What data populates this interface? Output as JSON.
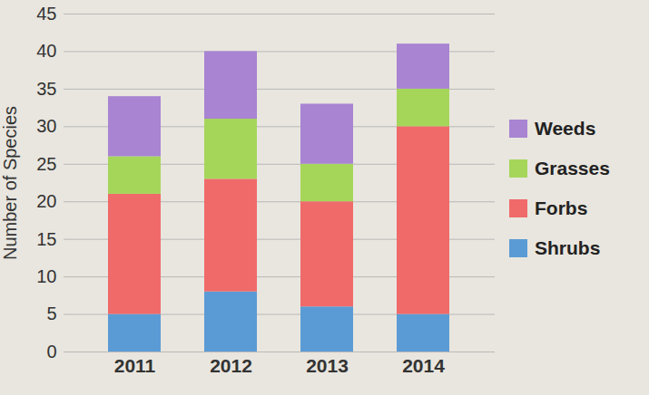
{
  "chart_data": {
    "type": "bar",
    "stacked": true,
    "grid": true,
    "legend": "right",
    "ylabel": "Number of Species",
    "categories": [
      "2011",
      "2012",
      "2013",
      "2014"
    ],
    "ylim": [
      0,
      45
    ],
    "yticks": [
      0,
      5,
      10,
      15,
      20,
      25,
      30,
      35,
      40,
      45
    ],
    "series": [
      {
        "name": "Shrubs",
        "color": "#5b9bd5",
        "values": [
          5,
          8,
          6,
          5
        ]
      },
      {
        "name": "Forbs",
        "color": "#f06a6a",
        "values": [
          16,
          15,
          14,
          25
        ]
      },
      {
        "name": "Grasses",
        "color": "#a5d65a",
        "values": [
          5,
          8,
          5,
          5
        ]
      },
      {
        "name": "Weeds",
        "color": "#a884d2",
        "values": [
          8,
          9,
          8,
          6
        ]
      }
    ]
  }
}
